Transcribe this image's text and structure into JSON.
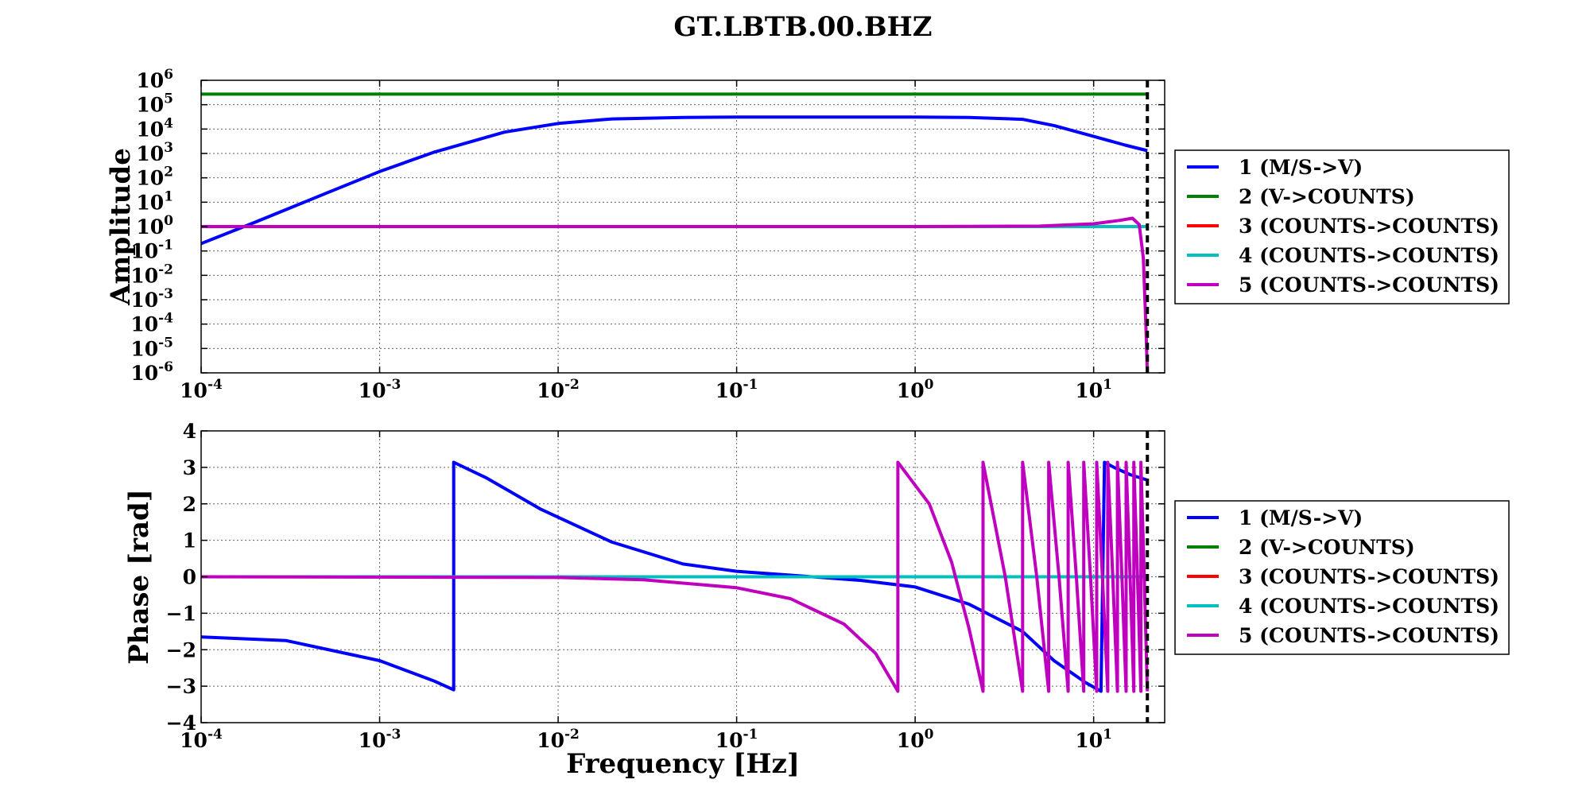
{
  "window_title": "GT.LBTB.00.BHZ",
  "series_legend": [
    "1 (M/S->V)",
    "2 (V->COUNTS)",
    "3 (COUNTS->COUNTS)",
    "4 (COUNTS->COUNTS)",
    "5 (COUNTS->COUNTS)"
  ],
  "series_colors": [
    "#0000ff",
    "#008000",
    "#ff0000",
    "#00bfbf",
    "#bf00bf"
  ],
  "chart_data": [
    {
      "type": "line",
      "title": "GT.LBTB.00.BHZ",
      "xlabel": "",
      "ylabel": "Amplitude",
      "x_scale": "log",
      "y_scale": "log",
      "xlim": [
        0.0001,
        25
      ],
      "ylim": [
        1e-06,
        1000000
      ],
      "x_ticks": [
        {
          "base": "10",
          "exp": "-4",
          "value": 0.0001
        },
        {
          "base": "10",
          "exp": "-3",
          "value": 0.001
        },
        {
          "base": "10",
          "exp": "-2",
          "value": 0.01
        },
        {
          "base": "10",
          "exp": "-1",
          "value": 0.1
        },
        {
          "base": "10",
          "exp": "0",
          "value": 1
        },
        {
          "base": "10",
          "exp": "1",
          "value": 10
        }
      ],
      "y_ticks": [
        {
          "base": "10",
          "exp": "6",
          "value": 1000000
        },
        {
          "base": "10",
          "exp": "5",
          "value": 100000
        },
        {
          "base": "10",
          "exp": "4",
          "value": 10000
        },
        {
          "base": "10",
          "exp": "3",
          "value": 1000
        },
        {
          "base": "10",
          "exp": "2",
          "value": 100
        },
        {
          "base": "10",
          "exp": "1",
          "value": 10
        },
        {
          "base": "10",
          "exp": "0",
          "value": 1
        },
        {
          "base": "10",
          "exp": "-1",
          "value": 0.1
        },
        {
          "base": "10",
          "exp": "-2",
          "value": 0.01
        },
        {
          "base": "10",
          "exp": "-3",
          "value": 0.001
        },
        {
          "base": "10",
          "exp": "-4",
          "value": 0.0001
        },
        {
          "base": "10",
          "exp": "-5",
          "value": 1e-05
        },
        {
          "base": "10",
          "exp": "-6",
          "value": 1e-06
        }
      ],
      "grid": true,
      "legend_position": "right",
      "nyquist_marker_x": 20,
      "series": [
        {
          "name": "1 (M/S->V)",
          "x": [
            0.0001,
            0.0002,
            0.0005,
            0.001,
            0.002,
            0.005,
            0.01,
            0.02,
            0.05,
            0.1,
            0.5,
            1,
            2,
            4,
            6,
            10,
            15,
            20
          ],
          "y": [
            0.2,
            1.5,
            23,
            180,
            1100,
            7500,
            17000,
            26000,
            30000,
            31000,
            31000,
            31000,
            30000,
            25000,
            14000,
            5000,
            2200,
            1300
          ]
        },
        {
          "name": "2 (V->COUNTS)",
          "x": [
            0.0001,
            20
          ],
          "y": [
            270000,
            270000
          ]
        },
        {
          "name": "3 (COUNTS->COUNTS)",
          "x": [
            0.0001,
            20
          ],
          "y": [
            1,
            1
          ]
        },
        {
          "name": "4 (COUNTS->COUNTS)",
          "x": [
            0.0001,
            20
          ],
          "y": [
            1,
            1
          ]
        },
        {
          "name": "5 (COUNTS->COUNTS)",
          "x": [
            0.0001,
            1,
            5,
            10,
            14,
            16.5,
            18,
            19,
            19.6,
            20
          ],
          "y": [
            1,
            1,
            1.05,
            1.3,
            1.8,
            2.2,
            1.2,
            0.05,
            0.0001,
            1e-06
          ]
        }
      ]
    },
    {
      "type": "line",
      "title": "",
      "xlabel": "Frequency [Hz]",
      "ylabel": "Phase [rad]",
      "x_scale": "log",
      "y_scale": "linear",
      "xlim": [
        0.0001,
        25
      ],
      "ylim": [
        -4,
        4
      ],
      "x_ticks": [
        {
          "base": "10",
          "exp": "-4",
          "value": 0.0001
        },
        {
          "base": "10",
          "exp": "-3",
          "value": 0.001
        },
        {
          "base": "10",
          "exp": "-2",
          "value": 0.01
        },
        {
          "base": "10",
          "exp": "-1",
          "value": 0.1
        },
        {
          "base": "10",
          "exp": "0",
          "value": 1
        },
        {
          "base": "10",
          "exp": "1",
          "value": 10
        }
      ],
      "y_ticks": [
        {
          "label": "4",
          "value": 4
        },
        {
          "label": "3",
          "value": 3
        },
        {
          "label": "2",
          "value": 2
        },
        {
          "label": "1",
          "value": 1
        },
        {
          "label": "0",
          "value": 0
        },
        {
          "label": "−1",
          "value": -1
        },
        {
          "label": "−2",
          "value": -2
        },
        {
          "label": "−3",
          "value": -3
        },
        {
          "label": "−4",
          "value": -4
        }
      ],
      "grid": true,
      "legend_position": "right",
      "nyquist_marker_x": 20,
      "series": [
        {
          "name": "1 (M/S->V)",
          "x": [
            0.0001,
            0.0003,
            0.001,
            0.002,
            0.0026,
            0.0026,
            0.004,
            0.008,
            0.02,
            0.05,
            0.1,
            0.3,
            0.5,
            1,
            2,
            4,
            6,
            9,
            11,
            11.5,
            13,
            16,
            20
          ],
          "y": [
            -1.65,
            -1.75,
            -2.3,
            -2.85,
            -3.1,
            3.14,
            2.7,
            1.85,
            0.95,
            0.35,
            0.15,
            -0.02,
            -0.1,
            -0.28,
            -0.75,
            -1.5,
            -2.3,
            -2.9,
            -3.14,
            3.14,
            3.0,
            2.8,
            2.65
          ]
        },
        {
          "name": "2 (V->COUNTS)",
          "x": [
            0.0001,
            20
          ],
          "y": [
            0,
            0
          ]
        },
        {
          "name": "3 (COUNTS->COUNTS)",
          "x": [
            0.0001,
            20
          ],
          "y": [
            0,
            0
          ]
        },
        {
          "name": "4 (COUNTS->COUNTS)",
          "x": [
            0.0001,
            20
          ],
          "y": [
            0,
            0
          ]
        },
        {
          "name": "5 (COUNTS->COUNTS)",
          "x": [
            0.0001,
            0.01,
            0.03,
            0.1,
            0.2,
            0.4,
            0.6,
            0.8,
            0.8,
            1.2,
            1.6,
            2.0,
            2.4,
            2.4,
            3.2,
            4.0,
            4.0,
            4.8,
            5.6,
            5.6,
            6.4,
            7.2,
            7.2,
            8.0,
            8.8,
            8.8,
            9.6,
            10.4,
            10.4,
            11.2,
            12.0,
            12.0,
            12.8,
            13.6,
            13.6,
            14.4,
            15.2,
            15.2,
            16.0,
            16.8,
            16.8,
            17.6,
            18.4,
            18.4,
            19.2,
            20.0
          ],
          "y": [
            0,
            -0.02,
            -0.08,
            -0.3,
            -0.6,
            -1.3,
            -2.1,
            -3.14,
            3.14,
            2.0,
            0.4,
            -1.4,
            -3.14,
            3.14,
            0,
            -3.14,
            3.14,
            0,
            -3.14,
            3.14,
            0,
            -3.14,
            3.14,
            0,
            -3.14,
            3.14,
            0,
            -3.14,
            3.14,
            0,
            -3.14,
            3.14,
            0,
            -3.14,
            3.14,
            0,
            -3.14,
            3.14,
            0,
            -3.14,
            3.14,
            0,
            -3.14,
            3.14,
            0,
            -3.14
          ]
        }
      ]
    }
  ]
}
